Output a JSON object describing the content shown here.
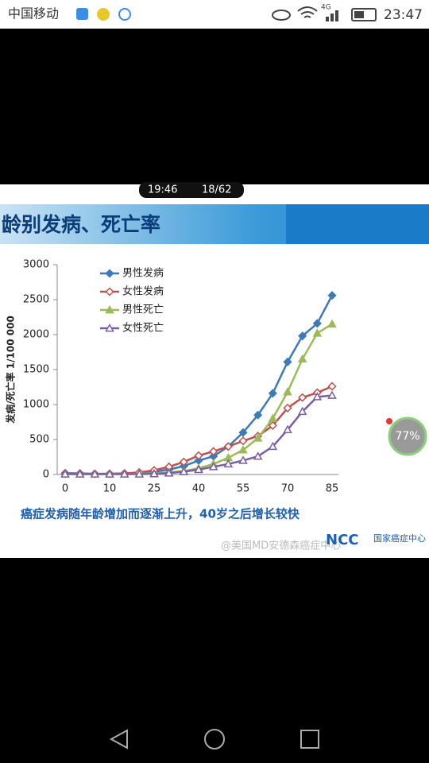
{
  "status_bar": {
    "carrier": "中国移动",
    "network": "4G",
    "time": "23:47"
  },
  "player": {
    "clock": "19:46",
    "page": "18/62",
    "progress": "77%"
  },
  "slide": {
    "banner": "龄别发病、死亡率",
    "caption": "癌症发病随年龄增加而逐渐上升，40岁之后增长较快",
    "logo": "NCC",
    "logo_text": "国家癌症中心",
    "watermark": "@美国MD安德森癌症中心"
  },
  "chart_data": {
    "type": "line",
    "ylabel": "发病/死亡率  1/100 000",
    "categories": [
      "0",
      null,
      null,
      "10",
      null,
      null,
      "25",
      null,
      null,
      "40",
      null,
      null,
      "55",
      null,
      null,
      "70",
      null,
      null,
      "85"
    ],
    "ylim": [
      0,
      3000
    ],
    "yticks": [
      0,
      500,
      1000,
      1500,
      2000,
      2500,
      3000
    ],
    "series": [
      {
        "name": "男性发病",
        "color": "#3d7ab8",
        "marker": "diamond",
        "values": [
          20,
          15,
          10,
          10,
          15,
          20,
          40,
          70,
          120,
          200,
          260,
          400,
          600,
          850,
          1160,
          1610,
          1980,
          2160,
          2560
        ]
      },
      {
        "name": "女性发病",
        "color": "#c0504d",
        "marker": "open-diamond",
        "values": [
          10,
          10,
          10,
          10,
          15,
          30,
          60,
          110,
          180,
          270,
          330,
          400,
          480,
          550,
          700,
          950,
          1100,
          1170,
          1260
        ]
      },
      {
        "name": "男性死亡",
        "color": "#9bbb59",
        "marker": "triangle",
        "values": [
          5,
          5,
          5,
          5,
          5,
          10,
          15,
          30,
          50,
          90,
          150,
          240,
          350,
          520,
          800,
          1180,
          1650,
          2020,
          2150
        ]
      },
      {
        "name": "女性死亡",
        "color": "#7a5ea8",
        "marker": "open-triangle",
        "values": [
          5,
          5,
          5,
          5,
          5,
          5,
          10,
          20,
          40,
          70,
          110,
          150,
          200,
          260,
          400,
          640,
          900,
          1110,
          1130
        ]
      }
    ]
  }
}
